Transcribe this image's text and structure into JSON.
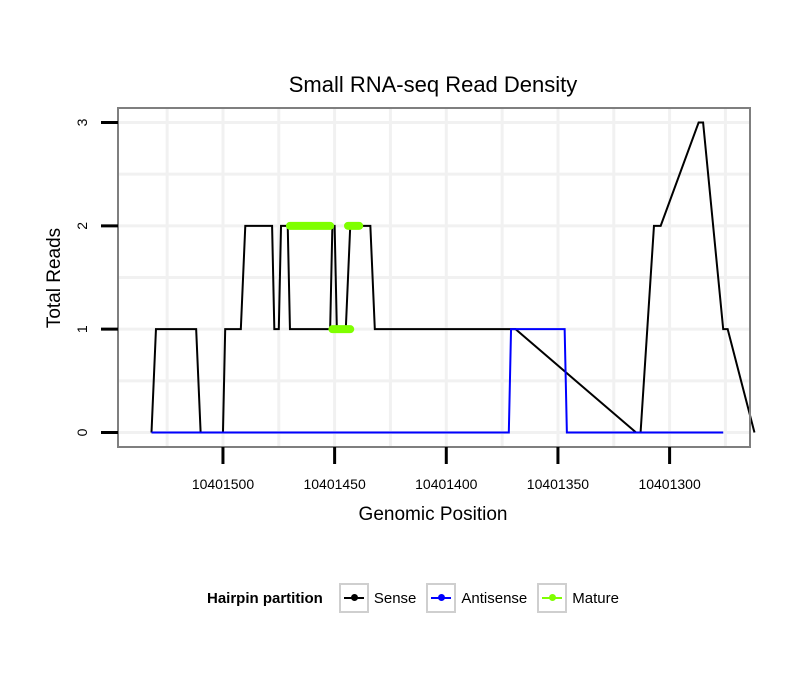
{
  "chart_data": {
    "type": "line",
    "title": "Small RNA-seq Read Density",
    "xlabel": "Genomic Position",
    "ylabel": "Total Reads",
    "x_reversed": true,
    "xlim": [
      10401547,
      10401264
    ],
    "ylim": [
      -0.14,
      3.14
    ],
    "x_ticks": [
      10401500,
      10401450,
      10401400,
      10401350,
      10401300
    ],
    "x_tick_labels": [
      "10401500",
      "10401450",
      "10401400",
      "10401350",
      "10401300"
    ],
    "y_ticks": [
      0,
      1,
      2,
      3
    ],
    "y_tick_labels": [
      "0",
      "1",
      "2",
      "3"
    ],
    "grid": true,
    "legend": {
      "title": "Hairpin partition",
      "placement": "bottom",
      "entries": [
        {
          "name": "Sense",
          "color": "#000000"
        },
        {
          "name": "Antisense",
          "color": "#0000ff"
        },
        {
          "name": "Mature",
          "color": "#7fff00"
        }
      ]
    },
    "series": [
      {
        "name": "Sense",
        "color": "#000000",
        "x": [
          10401532,
          10401530,
          10401512,
          10401510,
          10401500,
          10401499,
          10401492,
          10401490,
          10401478,
          10401477,
          10401475,
          10401474,
          10401471,
          10401470,
          10401452,
          10401451,
          10401450,
          10401449,
          10401445,
          10401443,
          10401434,
          10401432,
          10401369,
          10401315,
          10401313,
          10401307,
          10401304,
          10401287,
          10401285,
          10401276,
          10401274,
          10401262
        ],
        "y": [
          0,
          1,
          1,
          0,
          0,
          1,
          1,
          2,
          2,
          1,
          1,
          2,
          2,
          1,
          1,
          2,
          2,
          1,
          1,
          2,
          2,
          1,
          1,
          0,
          0,
          2,
          2,
          3,
          3,
          1,
          1,
          0
        ]
      },
      {
        "name": "Antisense",
        "color": "#0000ff",
        "x": [
          10401532,
          10401372,
          10401371,
          10401347,
          10401346,
          10401276
        ],
        "y": [
          0,
          0,
          1,
          1,
          0,
          0
        ]
      },
      {
        "name": "Mature",
        "color": "#7fff00",
        "segments": [
          {
            "x": [
              10401470,
              10401452
            ],
            "y": [
              2,
              2
            ]
          },
          {
            "x": [
              10401451,
              10401443
            ],
            "y": [
              1,
              1
            ]
          },
          {
            "x": [
              10401444,
              10401439
            ],
            "y": [
              2,
              2
            ]
          }
        ]
      }
    ]
  }
}
